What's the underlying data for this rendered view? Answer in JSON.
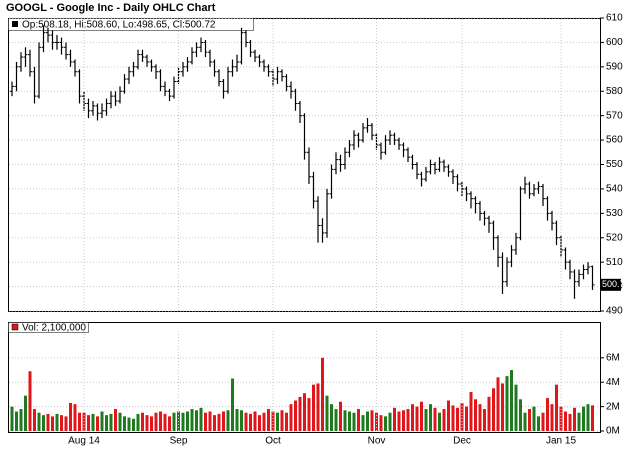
{
  "chart_data": [
    {
      "type": "ohlc",
      "title": "GOOGL - Google Inc - Daily OHLC Chart",
      "legend": "Op:508.18, Hi:508.60, Lo:498.65, Cl:500.72",
      "color": "#000000",
      "grid": true,
      "ylim": [
        490,
        610
      ],
      "yticks": [
        490,
        500,
        510,
        520,
        530,
        540,
        550,
        560,
        570,
        580,
        590,
        600,
        610
      ],
      "categories": [
        null,
        null,
        null,
        null,
        null,
        null,
        null,
        null,
        null,
        null,
        null,
        null,
        null,
        null,
        null,
        null,
        "Aug 14",
        null,
        null,
        null,
        null,
        null,
        null,
        null,
        null,
        null,
        null,
        null,
        null,
        null,
        null,
        null,
        null,
        null,
        null,
        null,
        null,
        "Sep",
        null,
        null,
        null,
        null,
        null,
        null,
        null,
        null,
        null,
        null,
        null,
        null,
        null,
        null,
        null,
        null,
        null,
        null,
        null,
        null,
        "Oct",
        null,
        null,
        null,
        null,
        null,
        null,
        null,
        null,
        null,
        null,
        null,
        null,
        null,
        null,
        null,
        null,
        null,
        null,
        null,
        null,
        null,
        null,
        "Nov",
        null,
        null,
        null,
        null,
        null,
        null,
        null,
        null,
        null,
        null,
        null,
        null,
        null,
        null,
        null,
        null,
        null,
        null,
        "Dec",
        null,
        null,
        null,
        null,
        null,
        null,
        null,
        null,
        null,
        null,
        null,
        null,
        null,
        null,
        null,
        null,
        null,
        null,
        null,
        null,
        null,
        "Jan 15",
        null,
        null,
        null,
        null,
        null,
        null,
        null
      ],
      "ohlc": [
        [
          580,
          584,
          578,
          582
        ],
        [
          582,
          592,
          580,
          590
        ],
        [
          590,
          596,
          588,
          594
        ],
        [
          594,
          598,
          590,
          595
        ],
        [
          595,
          597,
          586,
          588
        ],
        [
          588,
          590,
          575,
          578
        ],
        [
          578,
          600,
          577,
          598
        ],
        [
          598,
          607,
          596,
          604
        ],
        [
          604,
          606,
          600,
          603
        ],
        [
          603,
          605,
          597,
          600
        ],
        [
          600,
          603,
          597,
          600
        ],
        [
          600,
          602,
          595,
          598
        ],
        [
          598,
          600,
          593,
          595
        ],
        [
          595,
          597,
          590,
          592
        ],
        [
          592,
          593,
          586,
          588
        ],
        [
          588,
          589,
          575,
          578
        ],
        [
          578,
          580,
          572,
          575
        ],
        [
          575,
          577,
          569,
          572
        ],
        [
          572,
          576,
          570,
          574
        ],
        [
          574,
          575,
          568,
          571
        ],
        [
          571,
          575,
          569,
          572
        ],
        [
          572,
          577,
          570,
          575
        ],
        [
          575,
          580,
          573,
          578
        ],
        [
          578,
          580,
          574,
          576
        ],
        [
          576,
          582,
          575,
          580
        ],
        [
          580,
          587,
          579,
          585
        ],
        [
          585,
          590,
          583,
          588
        ],
        [
          588,
          592,
          586,
          590
        ],
        [
          590,
          597,
          589,
          595
        ],
        [
          595,
          597,
          592,
          594
        ],
        [
          594,
          595,
          590,
          592
        ],
        [
          592,
          593,
          588,
          590
        ],
        [
          590,
          591,
          585,
          588
        ],
        [
          588,
          589,
          580,
          582
        ],
        [
          582,
          584,
          578,
          580
        ],
        [
          580,
          581,
          576,
          578
        ],
        [
          578,
          586,
          577,
          584
        ],
        [
          584,
          590,
          583,
          588
        ],
        [
          588,
          592,
          586,
          590
        ],
        [
          590,
          594,
          588,
          592
        ],
        [
          592,
          598,
          591,
          596
        ],
        [
          596,
          600,
          594,
          598
        ],
        [
          598,
          602,
          596,
          600
        ],
        [
          600,
          601,
          594,
          596
        ],
        [
          596,
          597,
          590,
          592
        ],
        [
          592,
          593,
          586,
          588
        ],
        [
          588,
          589,
          582,
          584
        ],
        [
          584,
          585,
          577,
          580
        ],
        [
          580,
          590,
          579,
          588
        ],
        [
          588,
          593,
          586,
          590
        ],
        [
          590,
          595,
          588,
          592
        ],
        [
          592,
          606,
          591,
          604
        ],
        [
          604,
          605,
          598,
          600
        ],
        [
          600,
          601,
          594,
          596
        ],
        [
          596,
          597,
          592,
          594
        ],
        [
          594,
          595,
          590,
          592
        ],
        [
          592,
          593,
          588,
          590
        ],
        [
          590,
          591,
          586,
          588
        ],
        [
          588,
          589,
          582,
          585
        ],
        [
          585,
          590,
          583,
          588
        ],
        [
          588,
          589,
          584,
          586
        ],
        [
          586,
          587,
          580,
          582
        ],
        [
          582,
          584,
          577,
          580
        ],
        [
          580,
          581,
          572,
          575
        ],
        [
          575,
          576,
          567,
          570
        ],
        [
          570,
          571,
          552,
          555
        ],
        [
          555,
          557,
          542,
          545
        ],
        [
          545,
          547,
          532,
          535
        ],
        [
          535,
          537,
          518,
          525
        ],
        [
          525,
          528,
          518,
          522
        ],
        [
          522,
          540,
          520,
          538
        ],
        [
          538,
          550,
          536,
          548
        ],
        [
          548,
          555,
          546,
          552
        ],
        [
          552,
          554,
          547,
          550
        ],
        [
          550,
          557,
          548,
          555
        ],
        [
          555,
          560,
          553,
          558
        ],
        [
          558,
          564,
          556,
          562
        ],
        [
          562,
          563,
          557,
          560
        ],
        [
          560,
          567,
          559,
          565
        ],
        [
          565,
          569,
          563,
          566
        ],
        [
          566,
          567,
          560,
          562
        ],
        [
          562,
          563,
          556,
          558
        ],
        [
          558,
          559,
          552,
          555
        ],
        [
          555,
          562,
          554,
          560
        ],
        [
          560,
          564,
          558,
          562
        ],
        [
          562,
          563,
          558,
          560
        ],
        [
          560,
          561,
          556,
          558
        ],
        [
          558,
          559,
          553,
          556
        ],
        [
          556,
          557,
          551,
          553
        ],
        [
          553,
          554,
          548,
          550
        ],
        [
          550,
          551,
          544,
          546
        ],
        [
          546,
          547,
          541,
          544
        ],
        [
          544,
          549,
          543,
          547
        ],
        [
          547,
          552,
          546,
          550
        ],
        [
          550,
          551,
          546,
          548
        ],
        [
          548,
          553,
          547,
          551
        ],
        [
          551,
          552,
          547,
          549
        ],
        [
          549,
          550,
          545,
          547
        ],
        [
          547,
          548,
          542,
          545
        ],
        [
          545,
          546,
          539,
          542
        ],
        [
          542,
          543,
          537,
          540
        ],
        [
          540,
          541,
          535,
          538
        ],
        [
          538,
          539,
          532,
          536
        ],
        [
          536,
          537,
          530,
          534
        ],
        [
          534,
          535,
          527,
          530
        ],
        [
          530,
          531,
          525,
          528
        ],
        [
          528,
          529,
          522,
          526
        ],
        [
          526,
          527,
          515,
          520
        ],
        [
          520,
          521,
          508,
          512
        ],
        [
          512,
          514,
          497,
          502
        ],
        [
          502,
          512,
          500,
          510
        ],
        [
          510,
          517,
          508,
          515
        ],
        [
          515,
          522,
          513,
          520
        ],
        [
          520,
          541,
          519,
          540
        ],
        [
          540,
          545,
          538,
          542
        ],
        [
          542,
          543,
          536,
          538
        ],
        [
          538,
          542,
          537,
          540
        ],
        [
          540,
          543,
          538,
          541
        ],
        [
          541,
          542,
          533,
          536
        ],
        [
          536,
          537,
          527,
          530
        ],
        [
          530,
          531,
          523,
          526
        ],
        [
          526,
          527,
          517,
          520
        ],
        [
          520,
          521,
          512,
          515
        ],
        [
          515,
          516,
          507,
          510
        ],
        [
          510,
          511,
          503,
          506
        ],
        [
          506,
          507,
          495,
          502
        ],
        [
          502,
          507,
          500,
          505
        ],
        [
          505,
          509,
          503,
          507
        ],
        [
          507,
          510,
          505,
          508
        ],
        [
          508.18,
          508.6,
          498.65,
          500.72
        ]
      ]
    },
    {
      "type": "volume",
      "legend": "Vol: 2,100,000",
      "up_color": "#1f7a1f",
      "down_color": "#e0161b",
      "grid": true,
      "ylim": [
        0,
        8.2
      ],
      "yticks": [
        {
          "value": 0,
          "label": "0M"
        },
        {
          "value": 2,
          "label": "2M"
        },
        {
          "value": 4,
          "label": "4M"
        },
        {
          "value": 6,
          "label": "6M"
        }
      ],
      "values": [
        2.0,
        1.6,
        1.8,
        2.9,
        4.9,
        1.8,
        1.5,
        1.3,
        1.4,
        1.2,
        1.4,
        1.3,
        1.2,
        2.3,
        2.2,
        1.5,
        1.5,
        1.3,
        1.4,
        1.2,
        1.6,
        1.3,
        1.4,
        1.8,
        1.5,
        1.2,
        1.1,
        1.0,
        1.4,
        1.5,
        1.3,
        1.2,
        1.5,
        1.6,
        1.4,
        1.2,
        1.5,
        1.6,
        1.5,
        1.6,
        1.8,
        1.7,
        1.9,
        1.5,
        1.6,
        1.3,
        1.4,
        1.6,
        1.7,
        4.3,
        1.8,
        1.7,
        1.5,
        1.4,
        1.6,
        1.3,
        1.5,
        1.8,
        1.6,
        1.5,
        1.7,
        1.5,
        2.2,
        2.5,
        2.8,
        3.1,
        2.7,
        3.8,
        3.9,
        6.0,
        2.9,
        2.2,
        1.8,
        2.4,
        1.7,
        1.6,
        1.5,
        1.8,
        1.3,
        1.6,
        1.7,
        1.5,
        1.3,
        1.2,
        1.5,
        1.9,
        1.6,
        1.7,
        1.8,
        2.2,
        2.0,
        2.4,
        1.8,
        2.2,
        1.9,
        1.5,
        1.8,
        2.5,
        2.1,
        1.9,
        2.3,
        2.0,
        3.2,
        2.6,
        2.2,
        1.8,
        2.8,
        3.5,
        4.4,
        3.9,
        4.5,
        5.0,
        3.8,
        2.6,
        1.5,
        1.8,
        2.0,
        1.2,
        1.5,
        2.7,
        2.2,
        3.8,
        2.0,
        1.6,
        1.4,
        1.9,
        1.5,
        2.0,
        2.2,
        2.1
      ]
    }
  ]
}
